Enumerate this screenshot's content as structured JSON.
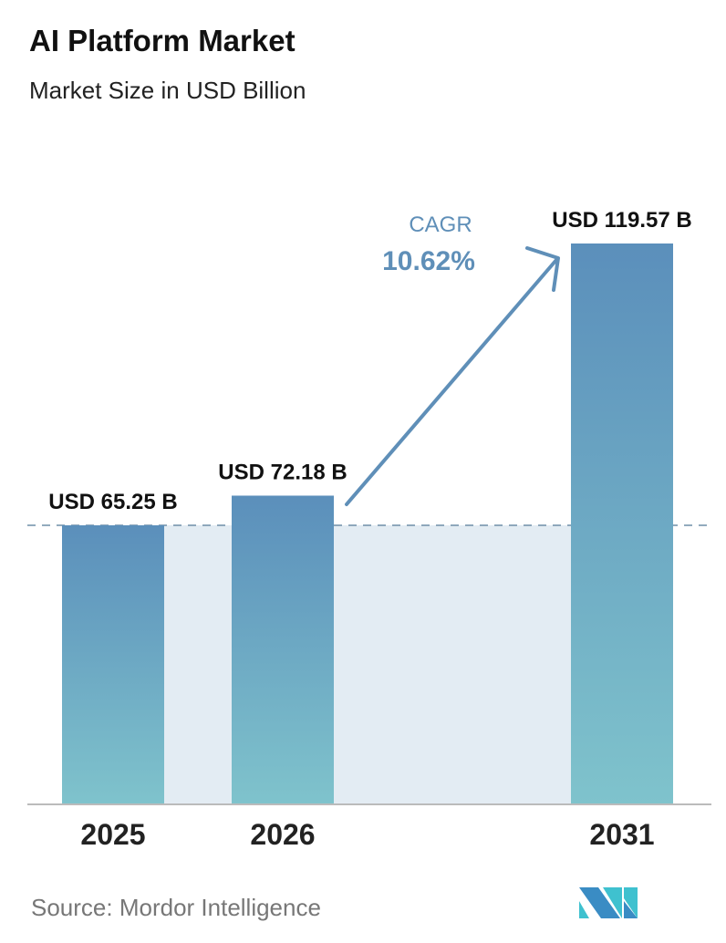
{
  "chart_data": {
    "type": "bar",
    "title": "AI Platform Market",
    "subtitle": "Market Size in USD Billion",
    "categories": [
      "2025",
      "2026",
      "2031"
    ],
    "values": [
      65.25,
      72.18,
      119.57
    ],
    "data_labels": [
      "USD 65.25 B",
      "USD 72.18 B",
      "USD 119.57 B"
    ],
    "annotation": {
      "label": "CAGR",
      "value": "10.62%"
    },
    "ylim": [
      0,
      130
    ],
    "grid": false,
    "colors": {
      "bar_top": "#5b8fbb",
      "bar_bottom": "#7fc3cc",
      "shade": "#e3ecf3",
      "accent": "#5f8fb8"
    }
  },
  "source": "Source:  Mordor Intelligence",
  "logo": "Mordor Intelligence logo"
}
